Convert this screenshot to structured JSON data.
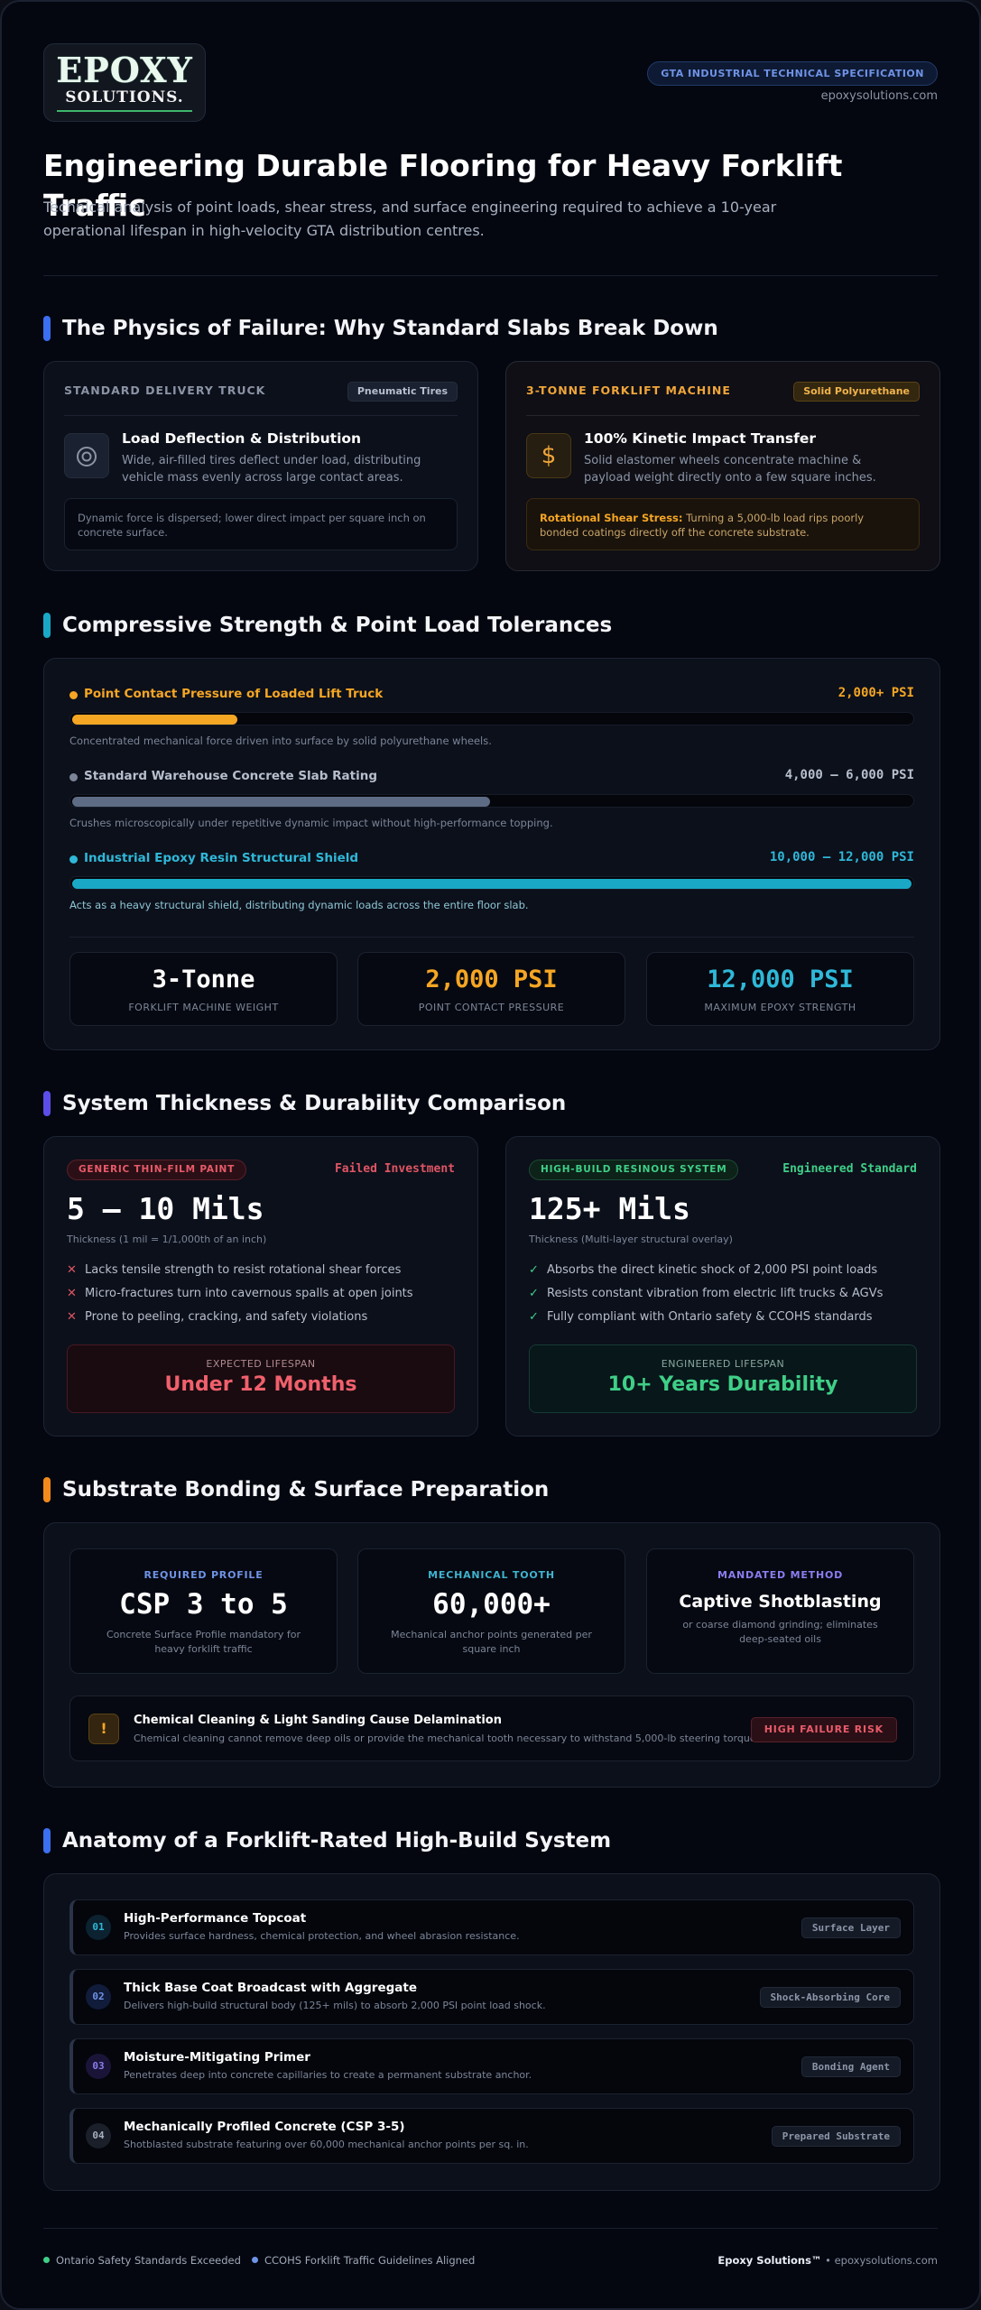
{
  "header": {
    "logo_line1": "EPOXY",
    "logo_line2": "SOLUTIONS.",
    "badge": "GTA INDUSTRIAL TECHNICAL SPECIFICATION",
    "domain": "epoxysolutions.com",
    "title": "Engineering Durable Flooring for Heavy Forklift Traffic",
    "subtitle": "Technical analysis of point loads, shear stress, and surface engineering required to achieve a 10-year operational lifespan in high-velocity GTA distribution centres."
  },
  "section1": {
    "heading": "The Physics of Failure: Why Standard Slabs Break Down",
    "truck": {
      "label": "STANDARD DELIVERY TRUCK",
      "tag": "Pneumatic Tires",
      "icon": "target-icon",
      "head": "Load Deflection & Distribution",
      "desc": "Wide, air-filled tires deflect under load, distributing vehicle mass evenly across large contact areas.",
      "note": "Dynamic force is dispersed; lower direct impact per square inch on concrete surface."
    },
    "forklift": {
      "label": "3-TONNE FORKLIFT MACHINE",
      "tag": "Solid Polyurethane",
      "icon": "dollar-icon",
      "head": "100% Kinetic Impact Transfer",
      "desc": "Solid elastomer wheels concentrate machine & payload weight directly onto a few square inches.",
      "note_strong": "Rotational Shear Stress:",
      "note": "Turning a 5,000-lb load rips poorly bonded coatings directly off the concrete substrate."
    }
  },
  "section2": {
    "heading": "Compressive Strength & Point Load Tolerances",
    "bars": [
      {
        "label": "Point Contact Pressure of Loaded Lift Truck",
        "value": "2,000+ PSI",
        "caption": "Concentrated mechanical force driven into surface by solid polyurethane wheels.",
        "fill": 0.2,
        "color": "#f5a623"
      },
      {
        "label": "Standard Warehouse Concrete Slab Rating",
        "value": "4,000 – 6,000 PSI",
        "caption": "Crushes microscopically under repetitive dynamic impact without high-performance topping.",
        "fill": 0.5,
        "color": "#5d6b85"
      },
      {
        "label": "Industrial Epoxy Resin Structural Shield",
        "value": "10,000 – 12,000 PSI",
        "caption": "Acts as a heavy structural shield, distributing dynamic loads across the entire floor slab.",
        "fill": 1.0,
        "color": "#1aa8c7"
      }
    ],
    "stats": [
      {
        "big": "3-Tonne",
        "small": "FORKLIFT MACHINE WEIGHT",
        "color": "#ffffff"
      },
      {
        "big": "2,000 PSI",
        "small": "POINT CONTACT PRESSURE",
        "color": "#f5a623"
      },
      {
        "big": "12,000 PSI",
        "small": "MAXIMUM EPOXY STRENGTH",
        "color": "#2fb8d8"
      }
    ]
  },
  "section3": {
    "heading": "System Thickness & Durability Comparison",
    "generic": {
      "pill": "GENERIC THIN-FILM PAINT",
      "status": "Failed Investment",
      "mils": "5 – 10 Mils",
      "sub": "Thickness (1 mil = 1/1,000th of an inch)",
      "bullets": [
        "Lacks tensile strength to resist rotational shear forces",
        "Micro-fractures turn into cavernous spalls at open joints",
        "Prone to peeling, cracking, and safety violations"
      ],
      "life_label": "EXPECTED LIFESPAN",
      "life_value": "Under 12 Months"
    },
    "engineered": {
      "pill": "HIGH-BUILD RESINOUS SYSTEM",
      "status": "Engineered Standard",
      "mils": "125+ Mils",
      "sub": "Thickness (Multi-layer structural overlay)",
      "bullets": [
        "Absorbs the direct kinetic shock of 2,000 PSI point loads",
        "Resists constant vibration from electric lift trucks & AGVs",
        "Fully compliant with Ontario safety & CCOHS standards"
      ],
      "life_label": "ENGINEERED LIFESPAN",
      "life_value": "10+ Years Durability"
    }
  },
  "section4": {
    "heading": "Substrate Bonding & Surface Preparation",
    "cards": [
      {
        "k": "REQUIRED PROFILE",
        "v": "CSP 3 to 5",
        "d": "Concrete Surface Profile mandatory for heavy forklift traffic",
        "color": "#6f93e6"
      },
      {
        "k": "MECHANICAL TOOTH",
        "v": "60,000+",
        "d": "Mechanical anchor points generated per square inch",
        "color": "#3fb3cf"
      },
      {
        "k": "MANDATED METHOD",
        "v": "Captive Shotblasting",
        "d": "or coarse diamond grinding; eliminates deep-seated oils",
        "color": "#8b7df0"
      }
    ],
    "warning": {
      "title": "Chemical Cleaning & Light Sanding Cause Delamination",
      "desc": "Chemical cleaning cannot remove deep oils or provide the mechanical tooth necessary to withstand 5,000-lb steering torque.",
      "badge": "HIGH FAILURE RISK"
    }
  },
  "section5": {
    "heading": "Anatomy of a Forklift-Rated High-Build System",
    "layers": [
      {
        "num": "01",
        "title": "High-Performance Topcoat",
        "sub": "Provides surface hardness, chemical protection, and wheel abrasion resistance.",
        "tag": "Surface Layer",
        "color": "#2fb8d8"
      },
      {
        "num": "02",
        "title": "Thick Base Coat Broadcast with Aggregate",
        "sub": "Delivers high-build structural body (125+ mils) to absorb 2,000 PSI point load shock.",
        "tag": "Shock-Absorbing Core",
        "color": "#6f93e6"
      },
      {
        "num": "03",
        "title": "Moisture-Mitigating Primer",
        "sub": "Penetrates deep into concrete capillaries to create a permanent substrate anchor.",
        "tag": "Bonding Agent",
        "color": "#8b7df0"
      },
      {
        "num": "04",
        "title": "Mechanically Profiled Concrete (CSP 3-5)",
        "sub": "Shotblasted substrate featuring over 60,000 mechanical anchor points per sq. in.",
        "tag": "Prepared Substrate",
        "color": "#a7b0c0"
      }
    ]
  },
  "footer": {
    "item1": "Ontario Safety Standards Exceeded",
    "item2": "CCOHS Forklift Traffic Guidelines Aligned",
    "brand": "Epoxy Solutions™",
    "sep": " • ",
    "domain": "epoxysolutions.com"
  }
}
